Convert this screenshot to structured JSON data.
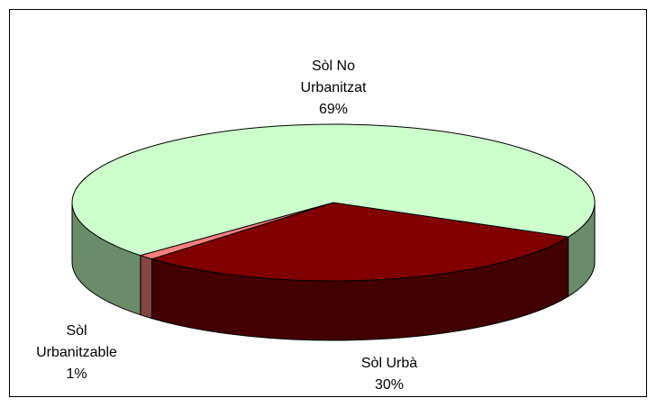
{
  "chart_data": {
    "type": "pie3d",
    "categories": [
      "Sòl Urbà",
      "Sòl Urbanitzable",
      "Sòl No Urbanitzat"
    ],
    "values": [
      30,
      1,
      69
    ],
    "value_labels": [
      "30%",
      "1%",
      "69%"
    ],
    "colors": [
      "#800000",
      "#ff8080",
      "#ccffcc"
    ]
  }
}
